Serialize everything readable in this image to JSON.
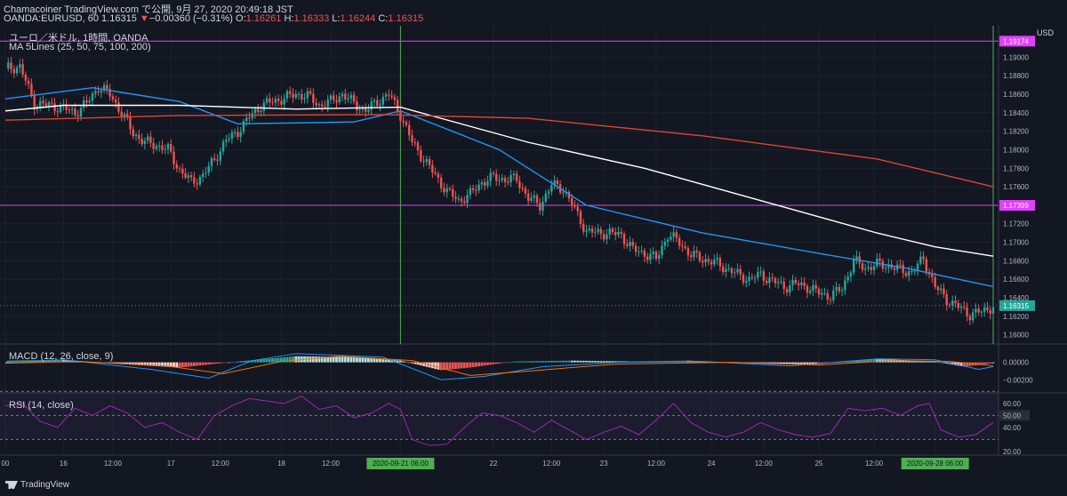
{
  "header": {
    "publisher_line": "Chamacoiner TradingView.com で公開, 9月 27, 2020 20:49:18 JST",
    "symbol": "OANDA:EURUSD, 60",
    "last": "1.16315",
    "change_arrow": "▼",
    "change": "−0.00360 (−0.31%)",
    "o_label": "O:",
    "o": "1.16261",
    "h_label": "H:",
    "h": "1.16333",
    "l_label": "L:",
    "l": "1.16244",
    "c_label": "C:",
    "c": "1.16315"
  },
  "chart_title": "ユーロ／米ドル, 1時間, OANDA",
  "ma_label": "MA 5Lines (25, 50, 75, 100, 200)",
  "macd_label": "MACD (12, 26, close, 9)",
  "rsi_label": "RSI (14, close)",
  "currency": "USD",
  "brand": "TradingView",
  "colors": {
    "background": "#131722",
    "up": "#26a69a",
    "down": "#ef5350",
    "ma_blue": "#2196f3",
    "ma_white": "#ffffff",
    "ma_red": "#e0442f",
    "hline": "#e040fb",
    "vline": "#4caf50",
    "rsi": "#9c27b0"
  },
  "chart_data": [
    {
      "type": "line",
      "panel": "price",
      "title": "ユーロ／米ドル, 1時間, OANDA",
      "x_ticks": [
        "00",
        "16",
        "12:00",
        "17",
        "12:00",
        "18",
        "12:00",
        "2020-09-21  06:00",
        "22",
        "12:00",
        "23",
        "12:00",
        "24",
        "12:00",
        "25",
        "12:00",
        "2020-09-28  06:00"
      ],
      "y_ticks": [
        "1.19000",
        "1.18800",
        "1.18600",
        "1.18400",
        "1.18200",
        "1.18000",
        "1.17800",
        "1.17600",
        "1.17400",
        "1.17200",
        "1.17000",
        "1.16800",
        "1.16600",
        "1.16400",
        "1.16200",
        "1.16000"
      ],
      "ylim": [
        1.159,
        1.1934
      ],
      "horizontal_lines": [
        {
          "value": 1.19174,
          "label": "1.19174"
        },
        {
          "value": 1.17399,
          "label": "1.17399"
        }
      ],
      "last_price": {
        "value": 1.16315,
        "label": "1.16315"
      },
      "close_path": [
        [
          0,
          1.1888
        ],
        [
          5,
          1.189
        ],
        [
          10,
          1.185
        ],
        [
          15,
          1.1848
        ],
        [
          20,
          1.1845
        ],
        [
          24,
          1.184
        ],
        [
          28,
          1.185
        ],
        [
          32,
          1.1868
        ],
        [
          36,
          1.186
        ],
        [
          40,
          1.184
        ],
        [
          44,
          1.1818
        ],
        [
          48,
          1.1808
        ],
        [
          52,
          1.1805
        ],
        [
          56,
          1.18
        ],
        [
          60,
          1.1778
        ],
        [
          64,
          1.1765
        ],
        [
          68,
          1.1772
        ],
        [
          72,
          1.179
        ],
        [
          76,
          1.181
        ],
        [
          80,
          1.182
        ],
        [
          84,
          1.1835
        ],
        [
          88,
          1.1848
        ],
        [
          92,
          1.1852
        ],
        [
          96,
          1.1856
        ],
        [
          100,
          1.186
        ],
        [
          104,
          1.1858
        ],
        [
          108,
          1.1848
        ],
        [
          112,
          1.1852
        ],
        [
          116,
          1.186
        ],
        [
          120,
          1.185
        ],
        [
          124,
          1.1842
        ],
        [
          128,
          1.1852
        ],
        [
          132,
          1.186
        ],
        [
          136,
          1.1838
        ],
        [
          140,
          1.1808
        ],
        [
          144,
          1.179
        ],
        [
          148,
          1.1772
        ],
        [
          152,
          1.1755
        ],
        [
          156,
          1.1745
        ],
        [
          160,
          1.1752
        ],
        [
          164,
          1.1765
        ],
        [
          168,
          1.177
        ],
        [
          172,
          1.1768
        ],
        [
          176,
          1.1768
        ],
        [
          180,
          1.1748
        ],
        [
          184,
          1.174
        ],
        [
          188,
          1.1762
        ],
        [
          192,
          1.1758
        ],
        [
          196,
          1.1735
        ],
        [
          200,
          1.1712
        ],
        [
          204,
          1.171
        ],
        [
          208,
          1.171
        ],
        [
          212,
          1.1708
        ],
        [
          216,
          1.1692
        ],
        [
          220,
          1.1688
        ],
        [
          224,
          1.1682
        ],
        [
          228,
          1.1708
        ],
        [
          232,
          1.17
        ],
        [
          236,
          1.1686
        ],
        [
          240,
          1.1682
        ],
        [
          244,
          1.1678
        ],
        [
          248,
          1.1672
        ],
        [
          252,
          1.1665
        ],
        [
          256,
          1.166
        ],
        [
          260,
          1.1665
        ],
        [
          264,
          1.1658
        ],
        [
          268,
          1.1652
        ],
        [
          272,
          1.1655
        ],
        [
          276,
          1.1652
        ],
        [
          280,
          1.1645
        ],
        [
          284,
          1.1642
        ],
        [
          288,
          1.165
        ],
        [
          292,
          1.168
        ],
        [
          296,
          1.1672
        ],
        [
          300,
          1.1676
        ],
        [
          304,
          1.1675
        ],
        [
          308,
          1.167
        ],
        [
          312,
          1.1668
        ],
        [
          316,
          1.1682
        ],
        [
          320,
          1.1652
        ],
        [
          324,
          1.1638
        ],
        [
          328,
          1.163
        ],
        [
          332,
          1.1622
        ],
        [
          336,
          1.1625
        ],
        [
          340,
          1.1631
        ]
      ],
      "series": [
        {
          "name": "MA 25",
          "color": "#2196f3",
          "points": [
            [
              0,
              1.1855
            ],
            [
              30,
              1.1867
            ],
            [
              60,
              1.1852
            ],
            [
              80,
              1.1828
            ],
            [
              120,
              1.183
            ],
            [
              136,
              1.1842
            ],
            [
              170,
              1.18
            ],
            [
              200,
              1.174
            ],
            [
              240,
              1.171
            ],
            [
              280,
              1.1688
            ],
            [
              310,
              1.1672
            ],
            [
              340,
              1.1652
            ]
          ]
        },
        {
          "name": "MA 50",
          "color": "#ffffff",
          "points": [
            [
              0,
              1.1842
            ],
            [
              20,
              1.1848
            ],
            [
              60,
              1.1848
            ],
            [
              100,
              1.1844
            ],
            [
              136,
              1.1846
            ],
            [
              180,
              1.1808
            ],
            [
              220,
              1.178
            ],
            [
              260,
              1.1745
            ],
            [
              300,
              1.171
            ],
            [
              320,
              1.1695
            ],
            [
              340,
              1.1685
            ]
          ]
        },
        {
          "name": "MA 200",
          "color": "#e0442f",
          "points": [
            [
              0,
              1.1832
            ],
            [
              60,
              1.1837
            ],
            [
              130,
              1.1838
            ],
            [
              180,
              1.1834
            ],
            [
              240,
              1.1815
            ],
            [
              300,
              1.179
            ],
            [
              340,
              1.176
            ]
          ]
        }
      ]
    },
    {
      "type": "bar",
      "panel": "macd",
      "title": "MACD (12, 26, close, 9)",
      "y_ticks": [
        "0.00000",
        "−0.00200"
      ],
      "ylim": [
        -0.0035,
        0.002
      ],
      "histogram": [
        [
          0,
          0.0002
        ],
        [
          20,
          0.0003
        ],
        [
          40,
          -0.0002
        ],
        [
          60,
          -0.0006
        ],
        [
          80,
          0.0001
        ],
        [
          100,
          0.0007
        ],
        [
          120,
          0.0006
        ],
        [
          136,
          0.0002
        ],
        [
          150,
          -0.0009
        ],
        [
          160,
          -0.0006
        ],
        [
          175,
          0.0001
        ],
        [
          195,
          0.0002
        ],
        [
          215,
          0.0001
        ],
        [
          235,
          0.0002
        ],
        [
          255,
          -0.0001
        ],
        [
          280,
          -0.0002
        ],
        [
          300,
          0.0004
        ],
        [
          320,
          0.0001
        ],
        [
          330,
          -0.0005
        ],
        [
          340,
          -0.0001
        ]
      ],
      "series": [
        {
          "name": "MACD",
          "color": "#2196f3",
          "points": [
            [
              0,
              0.0
            ],
            [
              20,
              0.0003
            ],
            [
              50,
              -0.0008
            ],
            [
              70,
              -0.0018
            ],
            [
              85,
              0.0002
            ],
            [
              100,
              0.001
            ],
            [
              130,
              0.0006
            ],
            [
              150,
              -0.002
            ],
            [
              165,
              -0.0016
            ],
            [
              185,
              -0.0005
            ],
            [
              210,
              0.0
            ],
            [
              240,
              0.0001
            ],
            [
              270,
              -0.0004
            ],
            [
              300,
              0.0004
            ],
            [
              320,
              0.0003
            ],
            [
              335,
              -0.0008
            ],
            [
              340,
              -0.0005
            ]
          ]
        },
        {
          "name": "Signal",
          "color": "#ff6d00",
          "points": [
            [
              0,
              -0.0001
            ],
            [
              25,
              0.0001
            ],
            [
              55,
              -0.0004
            ],
            [
              75,
              -0.0013
            ],
            [
              95,
              0.0001
            ],
            [
              115,
              0.0007
            ],
            [
              140,
              0.0002
            ],
            [
              160,
              -0.0015
            ],
            [
              180,
              -0.001
            ],
            [
              210,
              -0.0002
            ],
            [
              250,
              0.0
            ],
            [
              280,
              -0.0003
            ],
            [
              305,
              0.0002
            ],
            [
              325,
              0.0001
            ],
            [
              340,
              -0.0004
            ]
          ]
        }
      ]
    },
    {
      "type": "line",
      "panel": "rsi",
      "title": "RSI (14, close)",
      "y_ticks": [
        "60.00",
        "50.00",
        "40.00",
        "20.00"
      ],
      "ylim": [
        17,
        68
      ],
      "bands": [
        30,
        50,
        70
      ],
      "values": [
        [
          0,
          58
        ],
        [
          6,
          60
        ],
        [
          12,
          45
        ],
        [
          18,
          40
        ],
        [
          24,
          56
        ],
        [
          30,
          50
        ],
        [
          36,
          58
        ],
        [
          42,
          52
        ],
        [
          48,
          40
        ],
        [
          54,
          44
        ],
        [
          60,
          36
        ],
        [
          66,
          30
        ],
        [
          72,
          50
        ],
        [
          78,
          58
        ],
        [
          84,
          64
        ],
        [
          90,
          62
        ],
        [
          96,
          60
        ],
        [
          102,
          66
        ],
        [
          108,
          55
        ],
        [
          114,
          58
        ],
        [
          120,
          48
        ],
        [
          126,
          52
        ],
        [
          132,
          60
        ],
        [
          136,
          55
        ],
        [
          140,
          30
        ],
        [
          146,
          25
        ],
        [
          152,
          26
        ],
        [
          158,
          40
        ],
        [
          164,
          52
        ],
        [
          170,
          50
        ],
        [
          176,
          44
        ],
        [
          182,
          36
        ],
        [
          188,
          46
        ],
        [
          194,
          38
        ],
        [
          200,
          30
        ],
        [
          206,
          36
        ],
        [
          212,
          41
        ],
        [
          218,
          34
        ],
        [
          224,
          46
        ],
        [
          230,
          60
        ],
        [
          236,
          44
        ],
        [
          242,
          36
        ],
        [
          248,
          32
        ],
        [
          254,
          36
        ],
        [
          260,
          44
        ],
        [
          266,
          38
        ],
        [
          272,
          34
        ],
        [
          278,
          32
        ],
        [
          284,
          35
        ],
        [
          290,
          56
        ],
        [
          296,
          54
        ],
        [
          302,
          56
        ],
        [
          308,
          50
        ],
        [
          314,
          58
        ],
        [
          318,
          60
        ],
        [
          322,
          38
        ],
        [
          328,
          32
        ],
        [
          334,
          34
        ],
        [
          340,
          44
        ]
      ]
    }
  ]
}
